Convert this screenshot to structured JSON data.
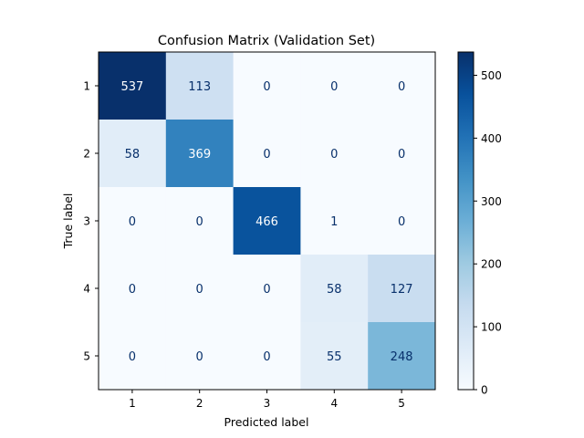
{
  "chart_data": {
    "type": "heatmap",
    "title": "Confusion Matrix (Validation Set)",
    "xlabel": "Predicted label",
    "ylabel": "True label",
    "x_categories": [
      "1",
      "2",
      "3",
      "4",
      "5"
    ],
    "y_categories": [
      "1",
      "2",
      "3",
      "4",
      "5"
    ],
    "values": [
      [
        537,
        113,
        0,
        0,
        0
      ],
      [
        58,
        369,
        0,
        0,
        0
      ],
      [
        0,
        0,
        466,
        1,
        0
      ],
      [
        0,
        0,
        0,
        58,
        127
      ],
      [
        0,
        0,
        0,
        55,
        248
      ]
    ],
    "vmin": 0,
    "vmax": 537,
    "colormap": "Blues",
    "colorbar_ticks": [
      0,
      100,
      200,
      300,
      400,
      500
    ],
    "grid": false,
    "colors": {
      "low": "#f7fbff",
      "high": "#08306b",
      "text_dark": "#08306b",
      "text_light": "#ffffff"
    }
  }
}
